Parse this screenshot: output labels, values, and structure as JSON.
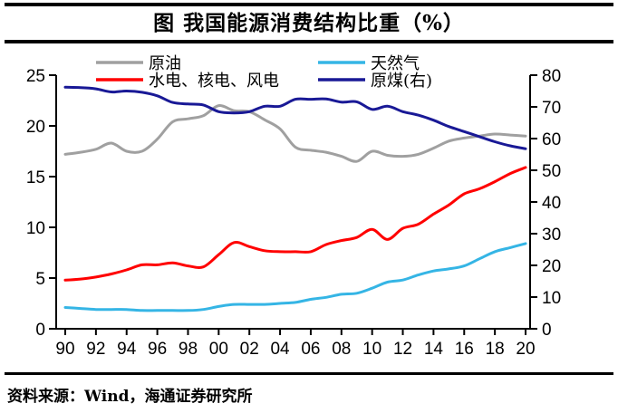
{
  "header": {
    "title": "图 我国能源消费结构比重（%）"
  },
  "footer": {
    "source": "资料来源：Wind，海通证券研究所"
  },
  "colors": {
    "crude_oil": "#a0a0a0",
    "hydro_nuclear_wind": "#ff0000",
    "natural_gas": "#35b5e5",
    "raw_coal": "#191996",
    "axis": "#000000"
  },
  "chart_data": {
    "type": "line",
    "title": "图 我国能源消费结构比重（%）",
    "grid": false,
    "legend_position": "top",
    "x": [
      1990,
      1991,
      1992,
      1993,
      1994,
      1995,
      1996,
      1997,
      1998,
      1999,
      2000,
      2001,
      2002,
      2003,
      2004,
      2005,
      2006,
      2007,
      2008,
      2009,
      2010,
      2011,
      2012,
      2013,
      2014,
      2015,
      2016,
      2017,
      2018,
      2019,
      2020
    ],
    "x_tick_labels": [
      "90",
      "92",
      "94",
      "96",
      "98",
      "00",
      "02",
      "04",
      "06",
      "08",
      "10",
      "12",
      "14",
      "16",
      "18",
      "20"
    ],
    "left_axis": {
      "min": 0,
      "max": 25,
      "step": 5,
      "ticks": [
        0,
        5,
        10,
        15,
        20,
        25
      ]
    },
    "right_axis": {
      "min": 0,
      "max": 80,
      "step": 10,
      "ticks": [
        0,
        10,
        20,
        30,
        40,
        50,
        60,
        70,
        80
      ]
    },
    "series": [
      {
        "name": "原油",
        "key": "crude-oil",
        "axis": "left",
        "color": "#a0a0a0",
        "values": [
          17.2,
          17.4,
          17.7,
          18.3,
          17.5,
          17.5,
          18.7,
          20.4,
          20.7,
          21.0,
          22.0,
          21.5,
          21.4,
          20.6,
          19.7,
          17.9,
          17.6,
          17.4,
          17.0,
          16.5,
          17.5,
          17.1,
          17.0,
          17.2,
          17.8,
          18.5,
          18.8,
          19.0,
          19.2,
          19.1,
          19.0
        ]
      },
      {
        "name": "水电、核电、风电",
        "key": "hydro-nuclear-wind",
        "axis": "left",
        "color": "#ff0000",
        "values": [
          4.8,
          4.9,
          5.1,
          5.4,
          5.8,
          6.3,
          6.3,
          6.5,
          6.2,
          6.1,
          7.3,
          8.5,
          8.1,
          7.7,
          7.6,
          7.6,
          7.6,
          8.3,
          8.7,
          9.0,
          9.8,
          8.8,
          9.9,
          10.3,
          11.3,
          12.2,
          13.3,
          13.8,
          14.5,
          15.3,
          15.9
        ]
      },
      {
        "name": "天然气",
        "key": "natural-gas",
        "axis": "left",
        "color": "#35b5e5",
        "values": [
          2.1,
          2.0,
          1.9,
          1.9,
          1.9,
          1.8,
          1.8,
          1.8,
          1.8,
          1.9,
          2.2,
          2.4,
          2.4,
          2.4,
          2.5,
          2.6,
          2.9,
          3.1,
          3.4,
          3.5,
          4.0,
          4.6,
          4.8,
          5.3,
          5.7,
          5.9,
          6.2,
          6.9,
          7.6,
          8.0,
          8.4
        ]
      },
      {
        "name": "原煤(右)",
        "key": "raw-coal",
        "axis": "right",
        "color": "#191996",
        "values": [
          76.2,
          76.1,
          75.7,
          74.7,
          75.0,
          74.6,
          73.5,
          71.4,
          70.9,
          70.6,
          68.5,
          68.1,
          68.5,
          70.2,
          70.2,
          72.4,
          72.4,
          72.5,
          71.5,
          71.6,
          69.2,
          70.2,
          68.5,
          67.4,
          65.8,
          63.8,
          62.2,
          60.6,
          59.0,
          57.7,
          56.8
        ]
      }
    ],
    "legend": [
      {
        "label": "原油",
        "series": 0
      },
      {
        "label": "天然气",
        "series": 2
      },
      {
        "label": "水电、核电、风电",
        "series": 1
      },
      {
        "label": "原煤(右)",
        "series": 3
      }
    ]
  }
}
